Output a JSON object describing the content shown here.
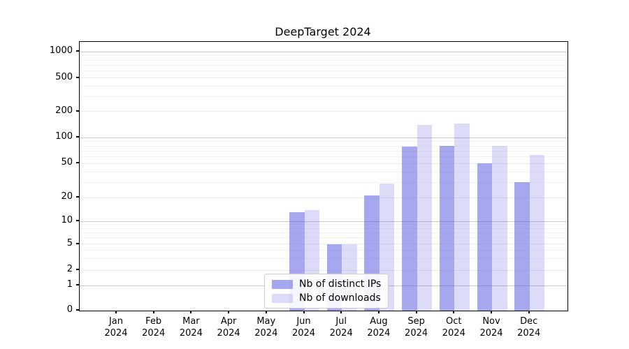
{
  "chart_data": {
    "type": "bar",
    "title": "DeepTarget 2024",
    "categories": [
      "Jan",
      "Feb",
      "Mar",
      "Apr",
      "May",
      "Jun",
      "Jul",
      "Aug",
      "Sep",
      "Oct",
      "Nov",
      "Dec"
    ],
    "x_tick_second_line": "2024",
    "series": [
      {
        "name": "Nb of distinct IPs",
        "key": "distinct-ips",
        "color": "rgba(80,80,224,0.5)",
        "values": [
          0,
          0,
          0,
          0,
          0,
          13,
          5,
          21,
          78,
          80,
          50,
          30
        ]
      },
      {
        "name": "Nb of downloads",
        "key": "downloads",
        "color": "rgba(80,80,224,0.2)",
        "values": [
          0,
          0,
          0,
          0,
          0,
          14,
          5,
          29,
          140,
          146,
          80,
          63
        ]
      }
    ],
    "y_axis": {
      "scale": "symlog",
      "ticks": [
        0,
        1,
        2,
        5,
        10,
        20,
        50,
        100,
        200,
        500,
        1000
      ],
      "minor_ticks": [
        3,
        4,
        6,
        7,
        8,
        9,
        30,
        40,
        60,
        70,
        80,
        90,
        300,
        400,
        600,
        700,
        800,
        900
      ],
      "range_top": 1300
    },
    "grid": true,
    "legend_position": "lower-center",
    "colors": {
      "bars_base": "#5050e0",
      "axis": "#000000",
      "grid_major": "#c9c9c9",
      "grid_minor": "#f3f3f3",
      "background": "#ffffff"
    }
  }
}
